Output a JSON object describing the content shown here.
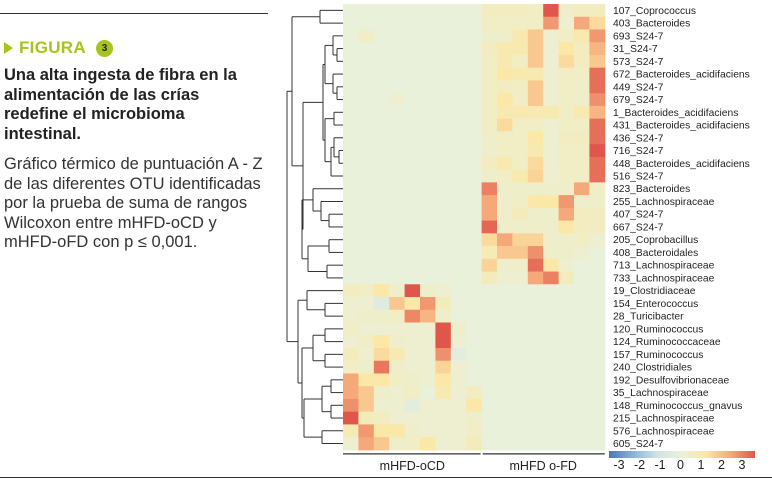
{
  "figure": {
    "label": "FIGURA",
    "number": "3",
    "title": "Una alta ingesta de fibra en la alimentación de las crías redefine el microbioma intestinal.",
    "caption": "Gráfico térmico de puntuación A - Z de las diferentes OTU identificadas por la prueba de suma de rangos Wilcoxon entre mHFD-oCD y mHFD-oFD con p ≤ 0,001.",
    "accent_color": "#a6c419"
  },
  "chart_data": {
    "type": "heatmap",
    "title": "",
    "groups": [
      {
        "name": "mHFD-oCD",
        "columns": 9
      },
      {
        "name": "mHFD o-FD",
        "columns": 8
      }
    ],
    "rows": [
      "107_Coprococcus",
      "403_Bacteroides",
      "693_S24-7",
      "31_S24-7",
      "573_S24-7",
      "672_Bacteroides_acidifaciens",
      "449_S24-7",
      "679_S24-7",
      "1_Bacteroides_acidifaciens",
      "431_Bacteroides_acidifaciens",
      "436_S24-7",
      "716_S24-7",
      "448_Bacteroides_acidifaciens",
      "516_S24-7",
      "823_Bacteroides",
      "255_Lachnospiraceae",
      "407_S24-7",
      "667_S24-7",
      "205_Coprobacillus",
      "408_Bacteroidales",
      "713_Lachnospiraceae",
      "733_Lachnospiraceae",
      "19_Clostridiaceae",
      "154_Enterococcus",
      "28_Turicibacter",
      "120_Ruminococcus",
      "124_Ruminococcaceae",
      "157_Ruminococcus",
      "240_Clostridiales",
      "192_Desulfovibrionaceae",
      "35_Lachnospiraceae",
      "148_Ruminococcus_gnavus",
      "215_Lachnospiraceae",
      "576_Lachnospiraceae",
      "605_S24-7"
    ],
    "values": [
      [
        0,
        0,
        0,
        0,
        0,
        0,
        0,
        0,
        0,
        0.5,
        0.5,
        0.5,
        0.4,
        3,
        0.3,
        0.5,
        0.5
      ],
      [
        0,
        0,
        0,
        0,
        0,
        0,
        0,
        0,
        0,
        0.4,
        0.4,
        0.4,
        0.4,
        2.2,
        0.2,
        2,
        1.2
      ],
      [
        0,
        0.4,
        0,
        0,
        0,
        0,
        0,
        0,
        0,
        0.3,
        0.3,
        0.8,
        1.5,
        0.2,
        0.4,
        0.8,
        2.2
      ],
      [
        0,
        0,
        0,
        0,
        0,
        0,
        0,
        0,
        0,
        0.5,
        0.8,
        0.8,
        1.5,
        0.2,
        1,
        0.5,
        1.8
      ],
      [
        0,
        0,
        0,
        0,
        0,
        0,
        0,
        0,
        0,
        0.4,
        0.8,
        0.4,
        1.5,
        0.2,
        1.2,
        0.5,
        1.5
      ],
      [
        0,
        0,
        0,
        0,
        0,
        0,
        0,
        0,
        0,
        0.4,
        1,
        0.8,
        0.8,
        0.2,
        0.4,
        0.4,
        2.7
      ],
      [
        0,
        0,
        0,
        0,
        0,
        0,
        0,
        0,
        0,
        0.4,
        0.5,
        0.4,
        1.5,
        0.2,
        0.4,
        0.3,
        2.7
      ],
      [
        0,
        0,
        0,
        0.2,
        0,
        0,
        0,
        0,
        0,
        0.4,
        1,
        0.4,
        1.5,
        0.2,
        0.4,
        0.3,
        2.3
      ],
      [
        0,
        0,
        0,
        0,
        0,
        0,
        0,
        0,
        0,
        0.4,
        0.8,
        0.8,
        0.8,
        0.8,
        0.4,
        0.8,
        1.8
      ],
      [
        0,
        0,
        0,
        0,
        0,
        0,
        0,
        0,
        0,
        0.4,
        1.2,
        0.4,
        0.4,
        0.2,
        0.4,
        0.4,
        2.7
      ],
      [
        0,
        0,
        0,
        0,
        0,
        0,
        0,
        0,
        0,
        0.3,
        0.4,
        0.4,
        1,
        0.2,
        0.5,
        0.5,
        2.7
      ],
      [
        0,
        0,
        0,
        0,
        0,
        0,
        0,
        0,
        0,
        0.3,
        0.4,
        0.4,
        0.8,
        0.2,
        0.4,
        0.4,
        3
      ],
      [
        0,
        0,
        0,
        0,
        0,
        0,
        0,
        0,
        0,
        0.5,
        0.8,
        0.4,
        1.2,
        0.2,
        0.4,
        0.4,
        2.7
      ],
      [
        0,
        0,
        0,
        0,
        0,
        0,
        0,
        0,
        0,
        0.3,
        0.4,
        0.8,
        1.3,
        0.2,
        0.4,
        0.4,
        2.7
      ],
      [
        0,
        0,
        0,
        0,
        0,
        0,
        0,
        0,
        0,
        2.5,
        0.3,
        0.3,
        0.3,
        0.3,
        0.3,
        2,
        0.4
      ],
      [
        0,
        0,
        0,
        0,
        0,
        0,
        0,
        0,
        0,
        2,
        0.3,
        0.4,
        1,
        1,
        2.2,
        0.3,
        0.3
      ],
      [
        0,
        0,
        0,
        0,
        0,
        0,
        0,
        0,
        0,
        2,
        0.3,
        0.6,
        0.3,
        0.3,
        2,
        0.5,
        0.5
      ],
      [
        0,
        0,
        0,
        0,
        0,
        0,
        0,
        0,
        0,
        2.8,
        0.3,
        0.3,
        0.3,
        0.3,
        1,
        0.5,
        0.5
      ],
      [
        0,
        0,
        0,
        0,
        0,
        0,
        0,
        0,
        0,
        1.2,
        2,
        1.3,
        1.3,
        0.3,
        0.3,
        0.4,
        0.2
      ],
      [
        0,
        0,
        0,
        0,
        0,
        0,
        0,
        0,
        0,
        0.7,
        1.5,
        1.5,
        2.3,
        0.3,
        0.3,
        0.2,
        0
      ],
      [
        0,
        0,
        0,
        0,
        0,
        0,
        0,
        0,
        0,
        1.3,
        0.3,
        0.3,
        2.7,
        1,
        0.2,
        0,
        0
      ],
      [
        0,
        0,
        0,
        0,
        0,
        0,
        0,
        0,
        0,
        0.6,
        0.2,
        0.2,
        2,
        2.5,
        0.6,
        0,
        0
      ],
      [
        0.5,
        0.4,
        1,
        0.3,
        3,
        0.3,
        0.2,
        0,
        0,
        0,
        0,
        0,
        0,
        0,
        0,
        0,
        0
      ],
      [
        0.2,
        0.2,
        -0.5,
        1.5,
        1,
        2.2,
        0.6,
        0,
        0,
        0,
        0,
        0,
        0,
        0,
        0,
        0,
        0
      ],
      [
        0.2,
        0.3,
        0.3,
        0.4,
        2.4,
        1.8,
        0.3,
        0,
        0,
        0,
        0,
        0,
        0,
        0,
        0,
        0,
        0
      ],
      [
        0.4,
        0.2,
        0.2,
        0.2,
        0.2,
        0.2,
        3,
        0.3,
        0,
        0,
        0,
        0,
        0,
        0,
        0,
        0,
        0
      ],
      [
        0.2,
        0.4,
        1,
        0.3,
        0.2,
        0.2,
        3,
        0.2,
        0,
        0,
        0,
        0,
        0,
        0,
        0,
        0,
        0
      ],
      [
        0.6,
        0.2,
        1.2,
        0.8,
        0.2,
        0.2,
        2.3,
        -0.3,
        0,
        0,
        0,
        0,
        0,
        0,
        0,
        0,
        0
      ],
      [
        0.4,
        0.3,
        2.6,
        0.3,
        0.2,
        0.2,
        1.3,
        0.2,
        0,
        0,
        0,
        0,
        0,
        0,
        0,
        0,
        0
      ],
      [
        2,
        1,
        1,
        0.4,
        0.3,
        0.2,
        1,
        0.2,
        0,
        0,
        0,
        0,
        0,
        0,
        0,
        0,
        0
      ],
      [
        2,
        1.5,
        0.3,
        0.2,
        0.4,
        0,
        0.8,
        0.2,
        0.5,
        0,
        0,
        0,
        0,
        0,
        0,
        0,
        0
      ],
      [
        2.3,
        1.5,
        0.2,
        0.2,
        -0.3,
        0.2,
        0.2,
        0.2,
        1,
        0,
        0,
        0,
        0,
        0,
        0,
        0,
        0
      ],
      [
        3,
        0.6,
        0.5,
        0.2,
        0.2,
        0.2,
        0.2,
        0.2,
        0.3,
        0,
        0,
        0,
        0,
        0,
        0,
        0,
        0
      ],
      [
        0.7,
        2.2,
        1,
        1,
        0.3,
        0.2,
        0.2,
        0.2,
        0.4,
        0,
        0,
        0,
        0,
        0,
        0,
        0,
        0
      ],
      [
        0.2,
        2,
        1.5,
        0.3,
        0.4,
        1,
        0.2,
        0.2,
        0.6,
        0,
        0,
        0,
        0,
        0,
        0,
        0,
        0
      ]
    ],
    "color_scale": {
      "min": -3,
      "max": 3,
      "ticks": [
        "-3",
        "-2",
        "-1",
        "0",
        "1",
        "2",
        "3"
      ],
      "colors": [
        "#4a78b8",
        "#8db4d6",
        "#cfe4e6",
        "#eaf1da",
        "#fbe7a6",
        "#f5a97a",
        "#e0564b"
      ]
    },
    "dendrogram": "rows",
    "legend_placement": "bottom-right"
  }
}
